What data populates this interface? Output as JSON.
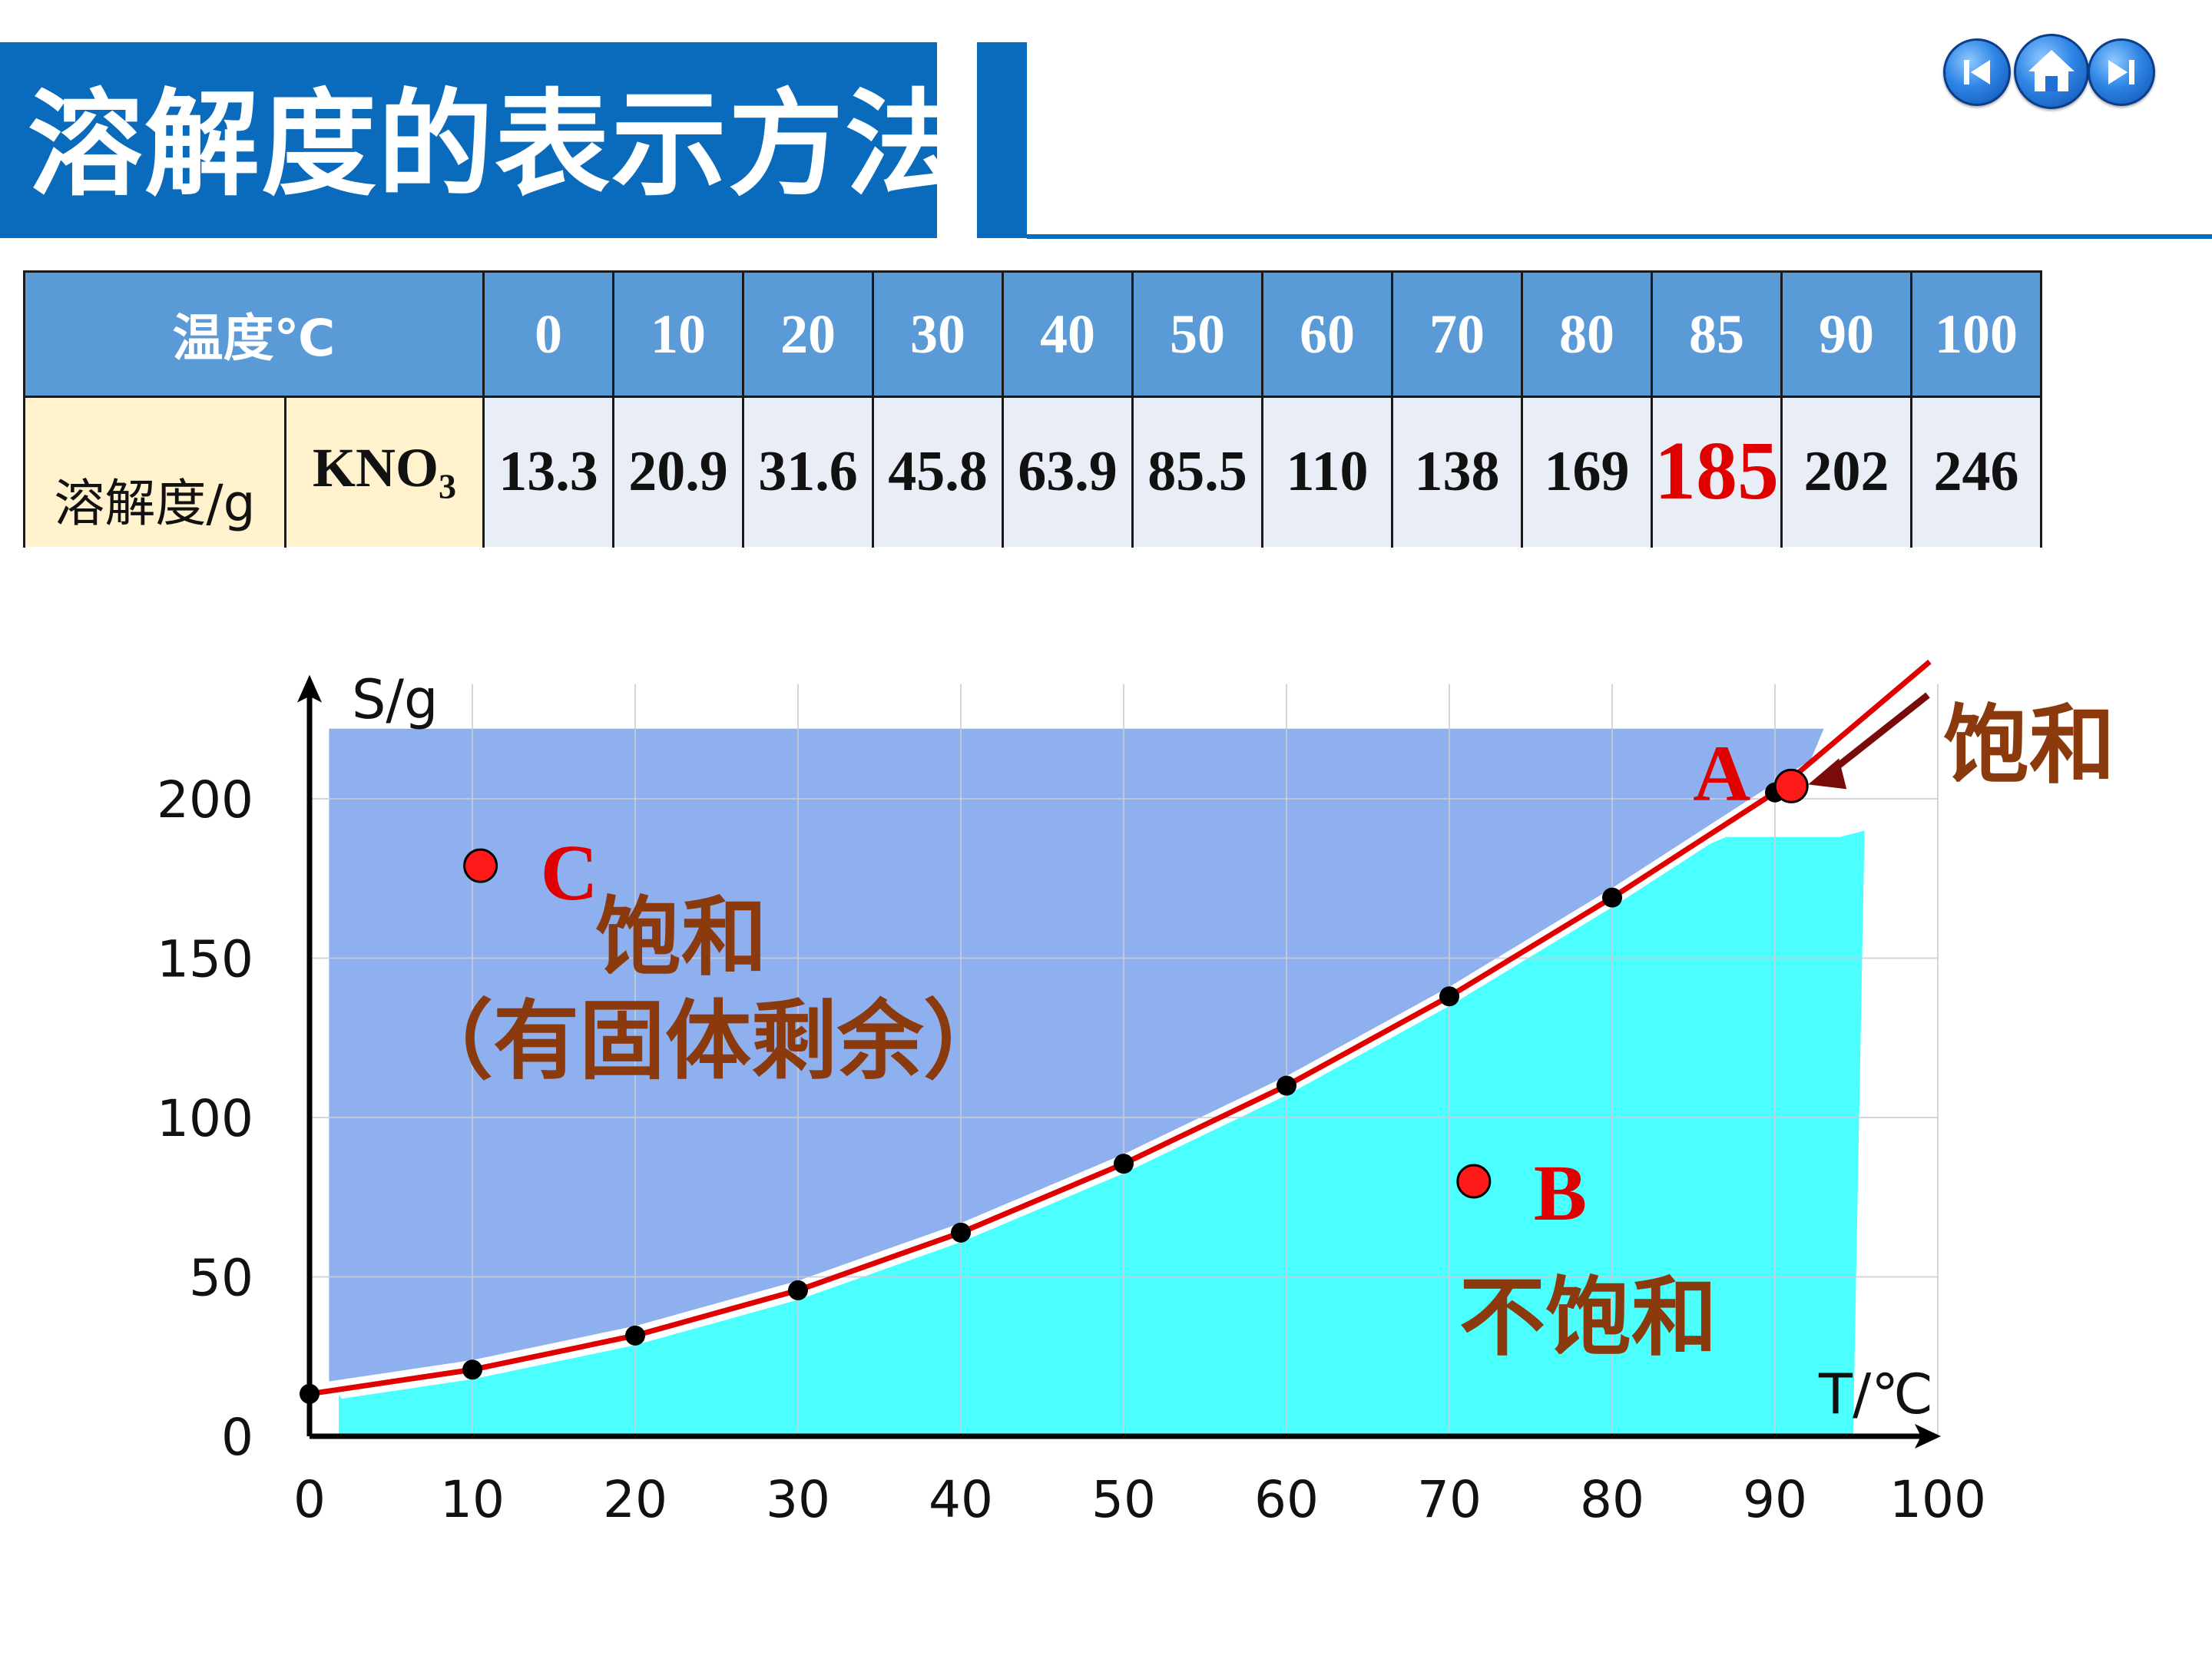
{
  "header": {
    "title": "溶解度的表示方法"
  },
  "table": {
    "header_label": "温度℃",
    "temperatures": [
      "0",
      "10",
      "20",
      "30",
      "40",
      "50",
      "60",
      "70",
      "80",
      "85",
      "90",
      "100"
    ],
    "row_label": "溶解度/g",
    "substance": "KNO",
    "substance_sub": "3",
    "values": [
      "13.3",
      "20.9",
      "31.6",
      "45.8",
      "63.9",
      "85.5",
      "110",
      "138",
      "169",
      "185",
      "202",
      "246"
    ],
    "highlight_index": 9
  },
  "chart_data": {
    "type": "line",
    "xlabel": "T/℃",
    "ylabel": "S/g",
    "xlim": [
      0,
      100
    ],
    "ylim": [
      0,
      200
    ],
    "x_ticks": [
      "0",
      "10",
      "20",
      "30",
      "40",
      "50",
      "60",
      "70",
      "80",
      "90",
      "100"
    ],
    "y_ticks": [
      "0",
      "50",
      "100",
      "150",
      "200"
    ],
    "grid": true,
    "series": [
      {
        "name": "KNO3",
        "x": [
          0,
          10,
          20,
          30,
          40,
          50,
          60,
          70,
          80,
          90
        ],
        "y": [
          13.3,
          20.9,
          31.6,
          45.8,
          63.9,
          85.5,
          110,
          138,
          169,
          202
        ]
      }
    ],
    "points": [
      {
        "label": "A",
        "x": 91,
        "y": 204
      },
      {
        "label": "B",
        "x": 71.5,
        "y": 80
      },
      {
        "label": "C",
        "x": 10.5,
        "y": 179
      }
    ],
    "regions": {
      "saturated_color": "#8fb0ef",
      "unsaturated_color": "#4cffff",
      "curve_color": "#e00000"
    },
    "annotations": {
      "top_right": "饱和",
      "upper_left": "饱和",
      "upper_left_note": "（有固体剩余）",
      "lower_right": "不饱和"
    }
  },
  "colors": {
    "brand": "#0a6bbd",
    "annotation": "#8b3a0e",
    "highlight": "#e00000"
  }
}
